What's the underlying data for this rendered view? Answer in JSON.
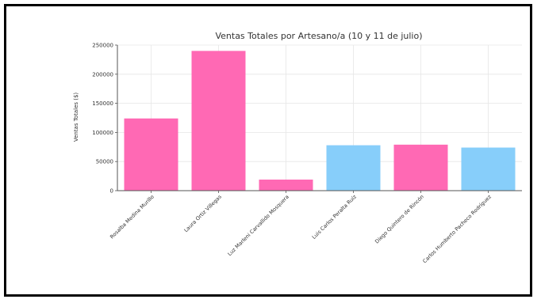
{
  "chart_data": {
    "type": "bar",
    "title": "Ventas Totales por Artesano/a (10 y 11 de julio)",
    "xlabel": "",
    "ylabel": "Ventas Totales ($)",
    "ylim": [
      0,
      250000
    ],
    "yticks": [
      0,
      50000,
      100000,
      150000,
      200000,
      250000
    ],
    "ytick_labels": [
      "0",
      "50000",
      "100000",
      "150000",
      "200000",
      "250000"
    ],
    "grid": true,
    "categories": [
      "Rosalba Medina Murillo",
      "Laura Ortiz Villegas",
      "Luz Marleni Carvallido Mosquera",
      "Luis Carlos Peralta Ruíz",
      "Diego Quintero de Rincón",
      "Carlos Humberto Pacheco Rodríguez"
    ],
    "values": [
      124000,
      240000,
      19000,
      78000,
      79000,
      74000
    ],
    "colors": [
      "#ff69b4",
      "#ff69b4",
      "#ff69b4",
      "#87cefa",
      "#ff69b4",
      "#87cefa"
    ]
  }
}
